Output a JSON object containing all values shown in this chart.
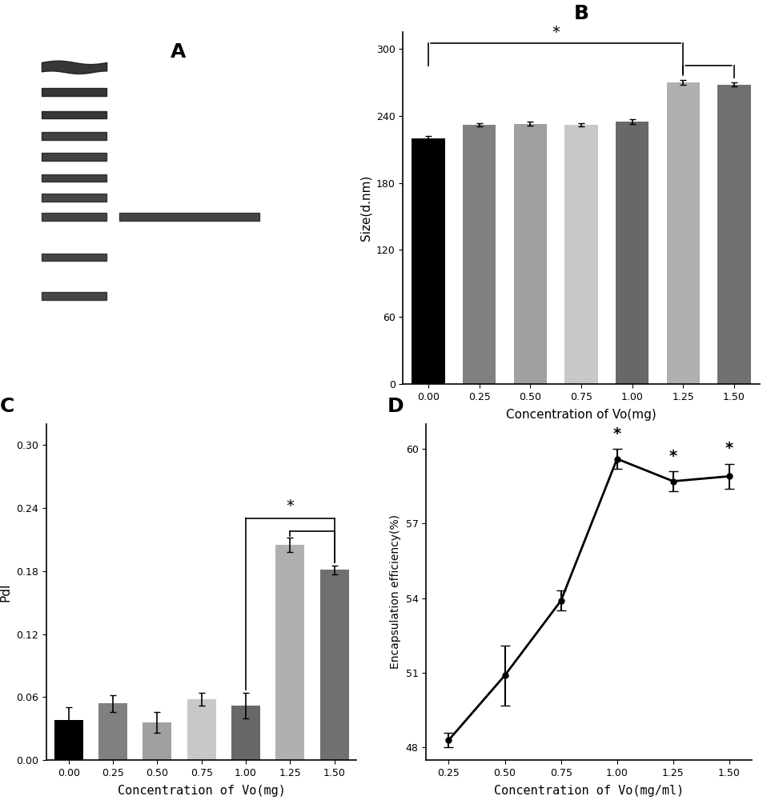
{
  "panel_B": {
    "categories": [
      "0.00",
      "0.25",
      "0.50",
      "0.75",
      "1.00",
      "1.25",
      "1.50"
    ],
    "values": [
      220,
      232,
      233,
      232,
      235,
      270,
      268
    ],
    "errors": [
      2,
      1.5,
      1.5,
      1.5,
      2,
      2,
      2
    ],
    "colors": [
      "#000000",
      "#808080",
      "#a0a0a0",
      "#c8c8c8",
      "#686868",
      "#b0b0b0",
      "#707070"
    ],
    "ylabel": "Size(d.nm)",
    "xlabel": "Concentration of Vo(mg)",
    "yticks": [
      0,
      60,
      120,
      180,
      240,
      300
    ],
    "ylim": [
      0,
      315
    ],
    "title": "B"
  },
  "panel_C": {
    "categories": [
      "0.00",
      "0.25",
      "0.50",
      "0.75",
      "1.00",
      "1.25",
      "1.50"
    ],
    "values": [
      0.038,
      0.054,
      0.036,
      0.058,
      0.052,
      0.205,
      0.181
    ],
    "errors": [
      0.012,
      0.008,
      0.01,
      0.006,
      0.012,
      0.007,
      0.004
    ],
    "colors": [
      "#000000",
      "#808080",
      "#a0a0a0",
      "#c8c8c8",
      "#686868",
      "#b0b0b0",
      "#707070"
    ],
    "ylabel": "PdI",
    "xlabel": "Concentration of Vo(mg)",
    "yticks": [
      0.0,
      0.06,
      0.12,
      0.18,
      0.24,
      0.3
    ],
    "ylim": [
      0,
      0.32
    ],
    "title": "C"
  },
  "panel_D": {
    "x": [
      0.25,
      0.5,
      0.75,
      1.0,
      1.25,
      1.5
    ],
    "y": [
      48.3,
      50.9,
      53.9,
      59.6,
      58.7,
      58.9
    ],
    "errors": [
      0.3,
      1.2,
      0.4,
      0.4,
      0.4,
      0.5
    ],
    "ylabel": "Encapsulation efficiency(%)",
    "xlabel": "Concentration of Vo(mg/ml)",
    "yticks": [
      48,
      51,
      54,
      57,
      60
    ],
    "ylim": [
      47.5,
      61
    ],
    "xlim": [
      0.15,
      1.6
    ],
    "xticks": [
      0.25,
      0.5,
      0.75,
      1.0,
      1.25,
      1.5
    ],
    "title": "D",
    "star_indices": [
      3,
      4,
      5
    ]
  },
  "background_color": "#ffffff",
  "font_family": "Arial"
}
